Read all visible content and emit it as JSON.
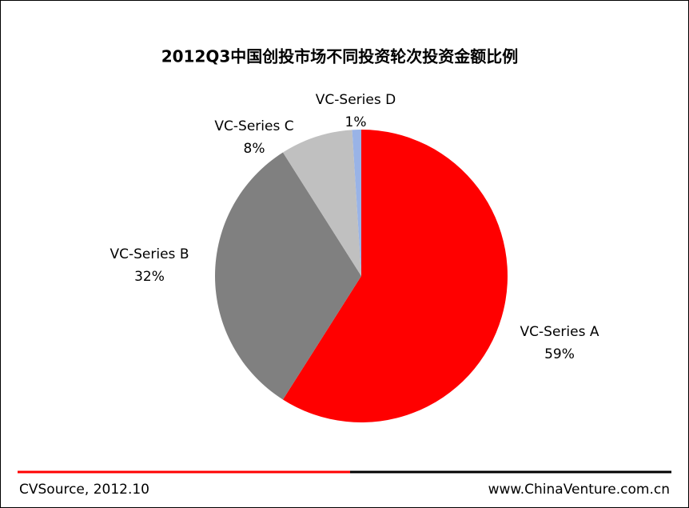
{
  "chart_data": {
    "type": "pie",
    "title": "2012Q3中国创投市场不同投资轮次投资金额比例",
    "categories": [
      "VC-Series A",
      "VC-Series B",
      "VC-Series C",
      "VC-Series D"
    ],
    "values": [
      59,
      32,
      8,
      1
    ],
    "value_labels": [
      "59%",
      "32%",
      "8%",
      "1%"
    ],
    "colors": [
      "#ff0000",
      "#808080",
      "#c0c0c0",
      "#99b3e6"
    ],
    "source": "CVSource, 2012.10",
    "website": "www.ChinaVenture.com.cn"
  }
}
